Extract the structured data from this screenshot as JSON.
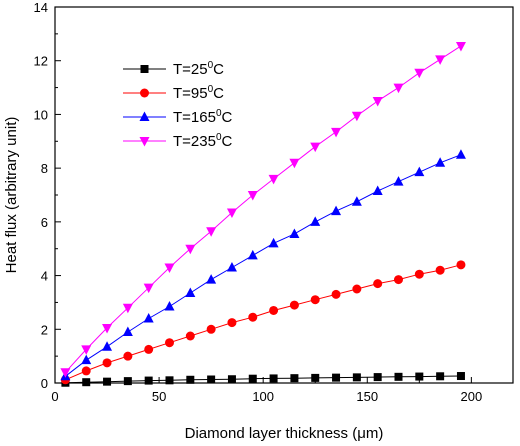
{
  "chart_data": {
    "type": "line",
    "title": "",
    "xlabel": "Diamond layer thickness (μm)",
    "ylabel": "Heat flux (arbitrary unit)",
    "xlim": [
      0,
      220
    ],
    "ylim": [
      0,
      14
    ],
    "xticks": [
      0,
      50,
      100,
      150,
      200
    ],
    "yticks": [
      0,
      2,
      4,
      6,
      8,
      10,
      12,
      14
    ],
    "grid": false,
    "legend_position": "top-left",
    "x": [
      5,
      15,
      25,
      35,
      45,
      55,
      65,
      75,
      85,
      95,
      105,
      115,
      125,
      135,
      145,
      155,
      165,
      175,
      185,
      195
    ],
    "series": [
      {
        "name": "T=25°C",
        "name_base": "T=25",
        "name_sup": "0",
        "name_unit": "C",
        "marker": "square",
        "color": "#000000",
        "values": [
          0.01,
          0.03,
          0.05,
          0.07,
          0.09,
          0.1,
          0.12,
          0.13,
          0.14,
          0.16,
          0.17,
          0.18,
          0.19,
          0.2,
          0.21,
          0.22,
          0.23,
          0.24,
          0.25,
          0.26
        ]
      },
      {
        "name": "T=95°C",
        "name_base": "T=95",
        "name_sup": "0",
        "name_unit": "C",
        "marker": "circle",
        "color": "#ff0000",
        "values": [
          0.12,
          0.45,
          0.75,
          1.0,
          1.25,
          1.5,
          1.75,
          2.0,
          2.25,
          2.45,
          2.7,
          2.9,
          3.1,
          3.3,
          3.5,
          3.7,
          3.85,
          4.05,
          4.2,
          4.4
        ]
      },
      {
        "name": "T=165°C",
        "name_base": "T=165",
        "name_sup": "0",
        "name_unit": "C",
        "marker": "triangle-up",
        "color": "#0000ff",
        "values": [
          0.25,
          0.85,
          1.35,
          1.9,
          2.4,
          2.85,
          3.35,
          3.85,
          4.3,
          4.75,
          5.2,
          5.55,
          6.0,
          6.4,
          6.75,
          7.15,
          7.5,
          7.85,
          8.2,
          8.5
        ]
      },
      {
        "name": "T=235°C",
        "name_base": "T=235",
        "name_sup": "0",
        "name_unit": "C",
        "marker": "triangle-down",
        "color": "#ff00ff",
        "values": [
          0.4,
          1.25,
          2.05,
          2.8,
          3.55,
          4.3,
          5.0,
          5.65,
          6.35,
          7.0,
          7.6,
          8.2,
          8.8,
          9.35,
          9.95,
          10.5,
          11.0,
          11.55,
          12.05,
          12.55
        ]
      }
    ]
  }
}
